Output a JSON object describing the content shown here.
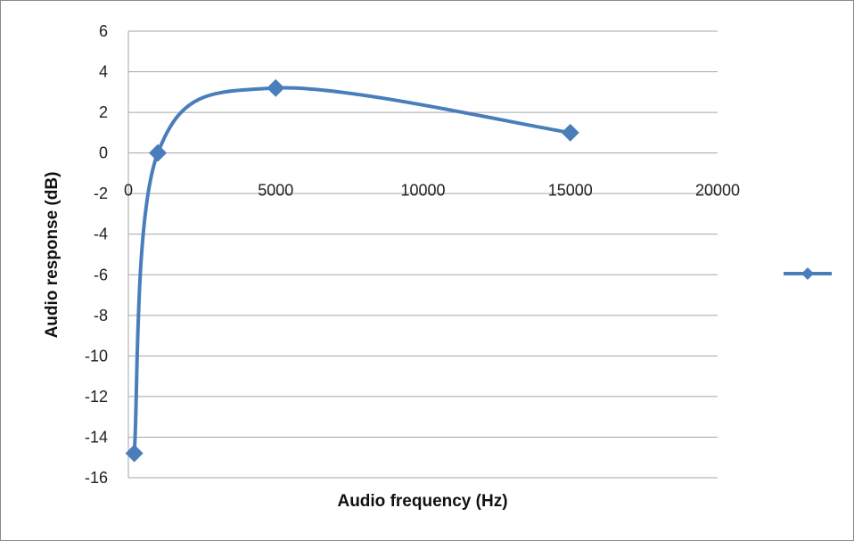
{
  "chart_data": {
    "type": "scatter",
    "title": "",
    "xlabel": "Audio frequency (Hz)",
    "ylabel": "Audio response (dB)",
    "xlim": [
      0,
      20000
    ],
    "ylim": [
      -16,
      6
    ],
    "x_ticks": [
      "0",
      "5000",
      "10000",
      "15000",
      "20000"
    ],
    "y_ticks": [
      "6",
      "4",
      "2",
      "0",
      "-2",
      "-4",
      "-6",
      "-8",
      "-10",
      "-12",
      "-14",
      "-16"
    ],
    "grid": "horizontal",
    "legend_position": "right",
    "line_style": "smooth",
    "marker": "diamond",
    "series": [
      {
        "color": "#4a7ebb",
        "points": [
          {
            "x": 200,
            "y": -14.8
          },
          {
            "x": 1000,
            "y": 0
          },
          {
            "x": 5000,
            "y": 3.2
          },
          {
            "x": 15000,
            "y": 1.0
          }
        ]
      }
    ]
  }
}
